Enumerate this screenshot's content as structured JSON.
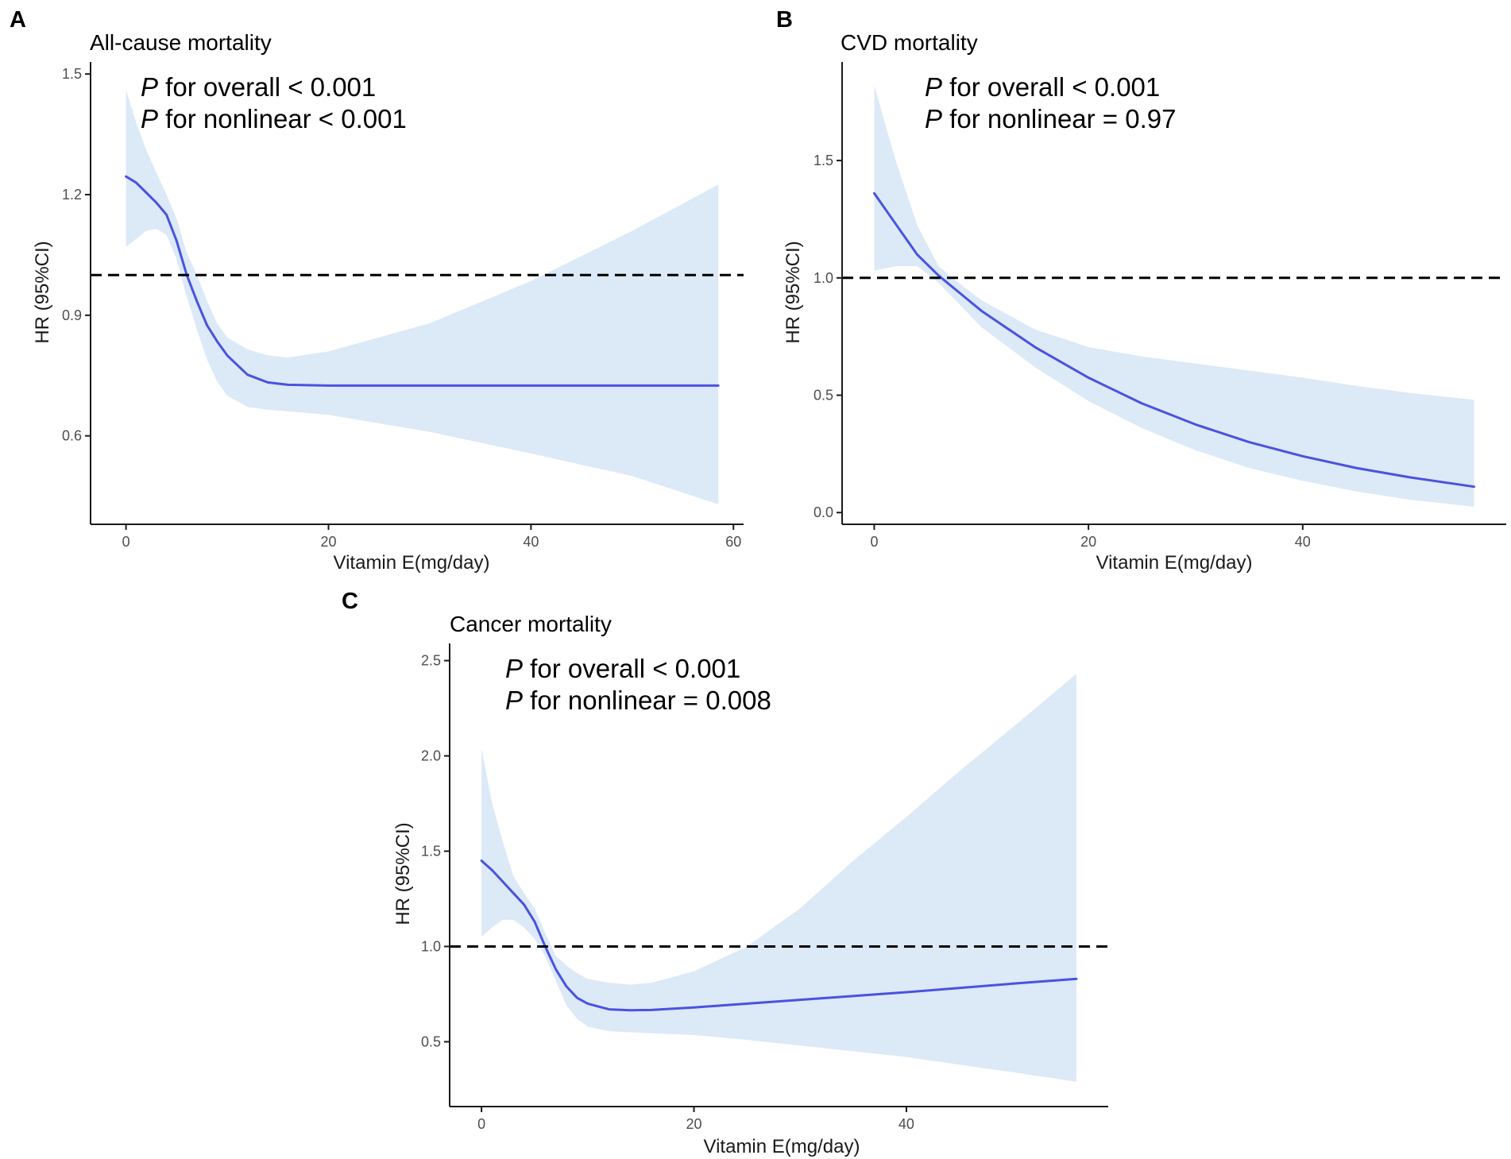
{
  "colors": {
    "line": "#4a52e0",
    "ci_band": "#dce9f7",
    "reference_line": "#000000",
    "axis": "#1a1a1a",
    "tick_text": "#4d4d4d"
  },
  "chart_data": [
    {
      "panel": "A",
      "type": "line",
      "title": "All-cause mortality",
      "xlabel": "Vitamin E(mg/day)",
      "ylabel": "HR (95%CI)",
      "xlim": [
        -3.5,
        61
      ],
      "ylim": [
        0.38,
        1.53
      ],
      "xticks": [
        0,
        20,
        40,
        60
      ],
      "yticks": [
        0.6,
        0.9,
        1.2,
        1.5
      ],
      "xtick_labels": [
        "0",
        "20",
        "40",
        "60"
      ],
      "ytick_labels": [
        "0.6",
        "0.9",
        "1.2",
        "1.5"
      ],
      "reference_line": 1.0,
      "annotation": {
        "line1_italic": "P",
        "line1_rest": " for overall < 0.001",
        "line2_italic": "P",
        "line2_rest": " for nonlinear < 0.001"
      },
      "series": [
        {
          "name": "HR",
          "x": [
            0,
            1,
            2,
            3,
            4,
            5,
            6,
            7,
            8,
            9,
            10,
            12,
            14,
            16,
            20,
            30,
            40,
            50,
            58.5
          ],
          "y": [
            1.245,
            1.23,
            1.205,
            1.18,
            1.15,
            1.085,
            1.0,
            0.935,
            0.875,
            0.835,
            0.8,
            0.752,
            0.733,
            0.727,
            0.725,
            0.725,
            0.725,
            0.725,
            0.725
          ]
        },
        {
          "name": "95% CI",
          "x": [
            0,
            1,
            2,
            3,
            4,
            5,
            6,
            7,
            8,
            9,
            10,
            12,
            14,
            16,
            20,
            30,
            40,
            50,
            58.5
          ],
          "lower": [
            1.07,
            1.09,
            1.11,
            1.115,
            1.1,
            1.04,
            0.945,
            0.865,
            0.79,
            0.735,
            0.7,
            0.672,
            0.665,
            0.661,
            0.652,
            0.61,
            0.556,
            0.5,
            0.43
          ],
          "upper": [
            1.46,
            1.38,
            1.31,
            1.255,
            1.2,
            1.14,
            1.055,
            1.0,
            0.935,
            0.88,
            0.845,
            0.815,
            0.8,
            0.795,
            0.81,
            0.88,
            0.985,
            1.11,
            1.225
          ]
        }
      ]
    },
    {
      "panel": "B",
      "type": "line",
      "title": "CVD mortality",
      "xlabel": "Vitamin E(mg/day)",
      "ylabel": "HR (95%CI)",
      "xlim": [
        -3,
        59
      ],
      "ylim": [
        -0.05,
        1.92
      ],
      "xticks": [
        0,
        20,
        40
      ],
      "yticks": [
        0.0,
        0.5,
        1.0,
        1.5
      ],
      "xtick_labels": [
        "0",
        "20",
        "40"
      ],
      "ytick_labels": [
        "0.0",
        "0.5",
        "1.0",
        "1.5"
      ],
      "reference_line": 1.0,
      "annotation": {
        "line1_italic": "P",
        "line1_rest": " for overall < 0.001",
        "line2_italic": "P",
        "line2_rest": " for nonlinear = 0.97"
      },
      "series": [
        {
          "name": "HR",
          "x": [
            0,
            2,
            4,
            6,
            8,
            10,
            15,
            20,
            25,
            30,
            35,
            40,
            45,
            50,
            56
          ],
          "y": [
            1.36,
            1.23,
            1.1,
            1.01,
            0.935,
            0.86,
            0.705,
            0.575,
            0.465,
            0.375,
            0.3,
            0.24,
            0.19,
            0.15,
            0.11
          ]
        },
        {
          "name": "95% CI",
          "x": [
            0,
            2,
            4,
            6,
            8,
            10,
            15,
            20,
            25,
            30,
            35,
            40,
            45,
            50,
            56
          ],
          "lower": [
            1.03,
            1.05,
            1.05,
            0.98,
            0.885,
            0.79,
            0.62,
            0.475,
            0.36,
            0.265,
            0.19,
            0.135,
            0.09,
            0.055,
            0.025
          ],
          "upper": [
            1.82,
            1.5,
            1.225,
            1.05,
            0.975,
            0.905,
            0.78,
            0.705,
            0.665,
            0.635,
            0.605,
            0.575,
            0.54,
            0.51,
            0.48
          ]
        }
      ]
    },
    {
      "panel": "C",
      "type": "line",
      "title": "Cancer mortality",
      "xlabel": "Vitamin E(mg/day)",
      "ylabel": "HR (95%CI)",
      "xlim": [
        -3,
        59
      ],
      "ylim": [
        0.16,
        2.59
      ],
      "xticks": [
        0,
        20,
        40
      ],
      "yticks": [
        0.5,
        1.0,
        1.5,
        2.0,
        2.5
      ],
      "xtick_labels": [
        "0",
        "20",
        "40"
      ],
      "ytick_labels": [
        "0.5",
        "1.0",
        "1.5",
        "2.0",
        "2.5"
      ],
      "reference_line": 1.0,
      "annotation": {
        "line1_italic": "P",
        "line1_rest": " for overall < 0.001",
        "line2_italic": "P",
        "line2_rest": " for nonlinear = 0.008"
      },
      "series": [
        {
          "name": "HR",
          "x": [
            0,
            1,
            2,
            3,
            4,
            5,
            6,
            7,
            8,
            9,
            10,
            12,
            14,
            16,
            20,
            30,
            40,
            50,
            56
          ],
          "y": [
            1.45,
            1.4,
            1.34,
            1.28,
            1.22,
            1.13,
            1.0,
            0.88,
            0.79,
            0.73,
            0.7,
            0.67,
            0.665,
            0.667,
            0.68,
            0.72,
            0.76,
            0.805,
            0.83
          ]
        },
        {
          "name": "95% CI",
          "x": [
            0,
            1,
            2,
            3,
            4,
            5,
            6,
            7,
            8,
            9,
            10,
            12,
            14,
            16,
            20,
            25,
            30,
            35,
            40,
            45,
            50,
            56
          ],
          "lower": [
            1.05,
            1.1,
            1.14,
            1.14,
            1.1,
            1.04,
            0.95,
            0.82,
            0.69,
            0.62,
            0.58,
            0.555,
            0.55,
            0.545,
            0.535,
            0.51,
            0.48,
            0.45,
            0.42,
            0.38,
            0.34,
            0.29
          ],
          "upper": [
            2.04,
            1.75,
            1.55,
            1.37,
            1.28,
            1.2,
            1.07,
            0.95,
            0.9,
            0.86,
            0.83,
            0.81,
            0.8,
            0.81,
            0.87,
            1.0,
            1.2,
            1.45,
            1.68,
            1.92,
            2.15,
            2.43
          ]
        }
      ]
    }
  ]
}
